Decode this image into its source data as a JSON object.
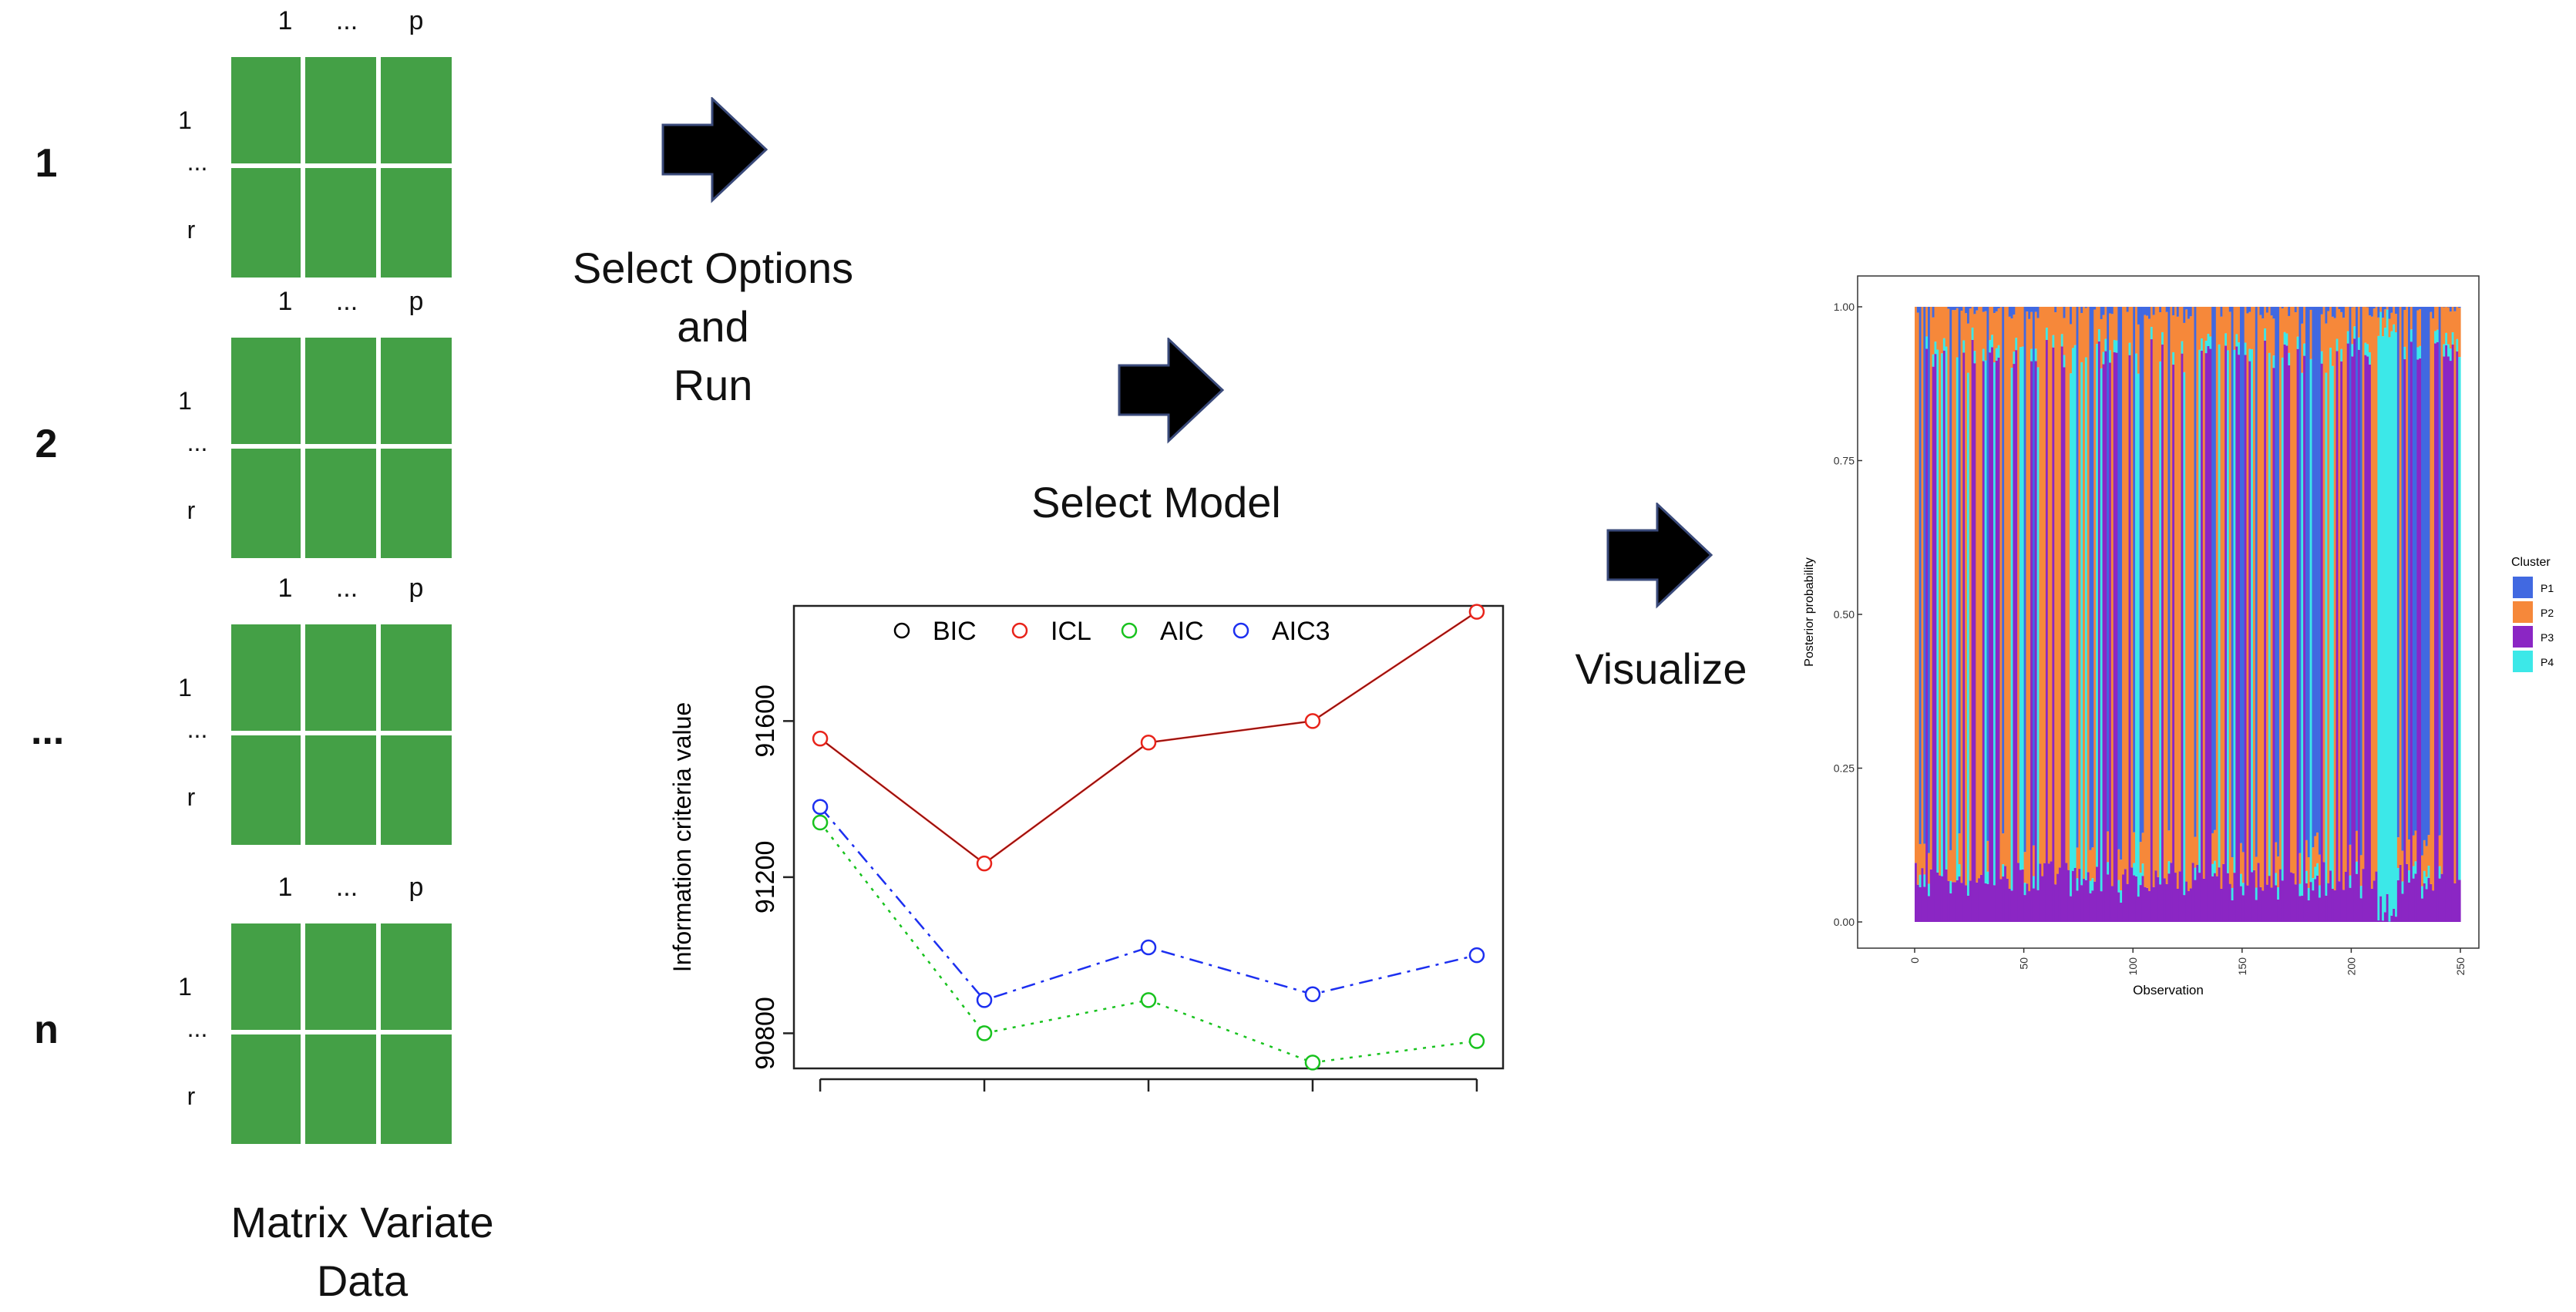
{
  "matrices": [
    {
      "row_label": "1"
    },
    {
      "row_label": "2"
    },
    {
      "row_label": "..."
    },
    {
      "row_label": "n"
    }
  ],
  "col_labels": [
    "1",
    "...",
    "p"
  ],
  "row_index_labels": [
    "1",
    "...",
    "r"
  ],
  "captions": {
    "data": [
      "Matrix Variate",
      "Data"
    ],
    "run": [
      "Select Options",
      "and",
      "Run"
    ],
    "model": "Select Model",
    "visualize": "Visualize"
  },
  "colors": {
    "matrix_cell": "#44a046",
    "arrow": "#000000",
    "bic": "#000000",
    "icl": "#e8231a",
    "aic": "#18c21e",
    "aic3": "#1c2ff0",
    "p1": "#4169e1",
    "p2": "#f6883a",
    "p3": "#8b26c4",
    "p4": "#3ce8e8"
  },
  "chart_data": [
    {
      "type": "line",
      "ylabel": "Information criteria value",
      "xlabel": "",
      "x": [
        1,
        2,
        3,
        4,
        5
      ],
      "ylim": [
        90720,
        91880
      ],
      "yticks": [
        90800,
        91200,
        91600
      ],
      "ytick_labels": [
        "90800",
        "91200",
        "91600"
      ],
      "legend_position": "top",
      "series": [
        {
          "name": "BIC",
          "values": [
            null,
            null,
            null,
            null,
            null
          ]
        },
        {
          "name": "ICL",
          "values": [
            91555,
            91235,
            91545,
            91600,
            91880
          ]
        },
        {
          "name": "AIC",
          "values": [
            91340,
            90800,
            90885,
            90725,
            90780
          ]
        },
        {
          "name": "AIC3",
          "values": [
            91380,
            90885,
            91020,
            90900,
            91000
          ]
        }
      ]
    },
    {
      "type": "bar",
      "stacked": true,
      "xlabel": "Observation",
      "ylabel": "Posterior probability",
      "xticks": [
        0,
        50,
        100,
        150,
        200,
        250
      ],
      "xtick_labels": [
        "0",
        "50",
        "100",
        "150",
        "200",
        "250"
      ],
      "yticks": [
        0,
        0.25,
        0.5,
        0.75,
        1
      ],
      "ytick_labels": [
        "0.00",
        "0.25",
        "0.50",
        "0.75",
        "1.00"
      ],
      "xlim": [
        0,
        250
      ],
      "ylim": [
        0,
        1
      ],
      "legend_title": "Cluster",
      "legend_position": "right",
      "clusters": [
        "P1",
        "P2",
        "P3",
        "P4"
      ]
    }
  ]
}
